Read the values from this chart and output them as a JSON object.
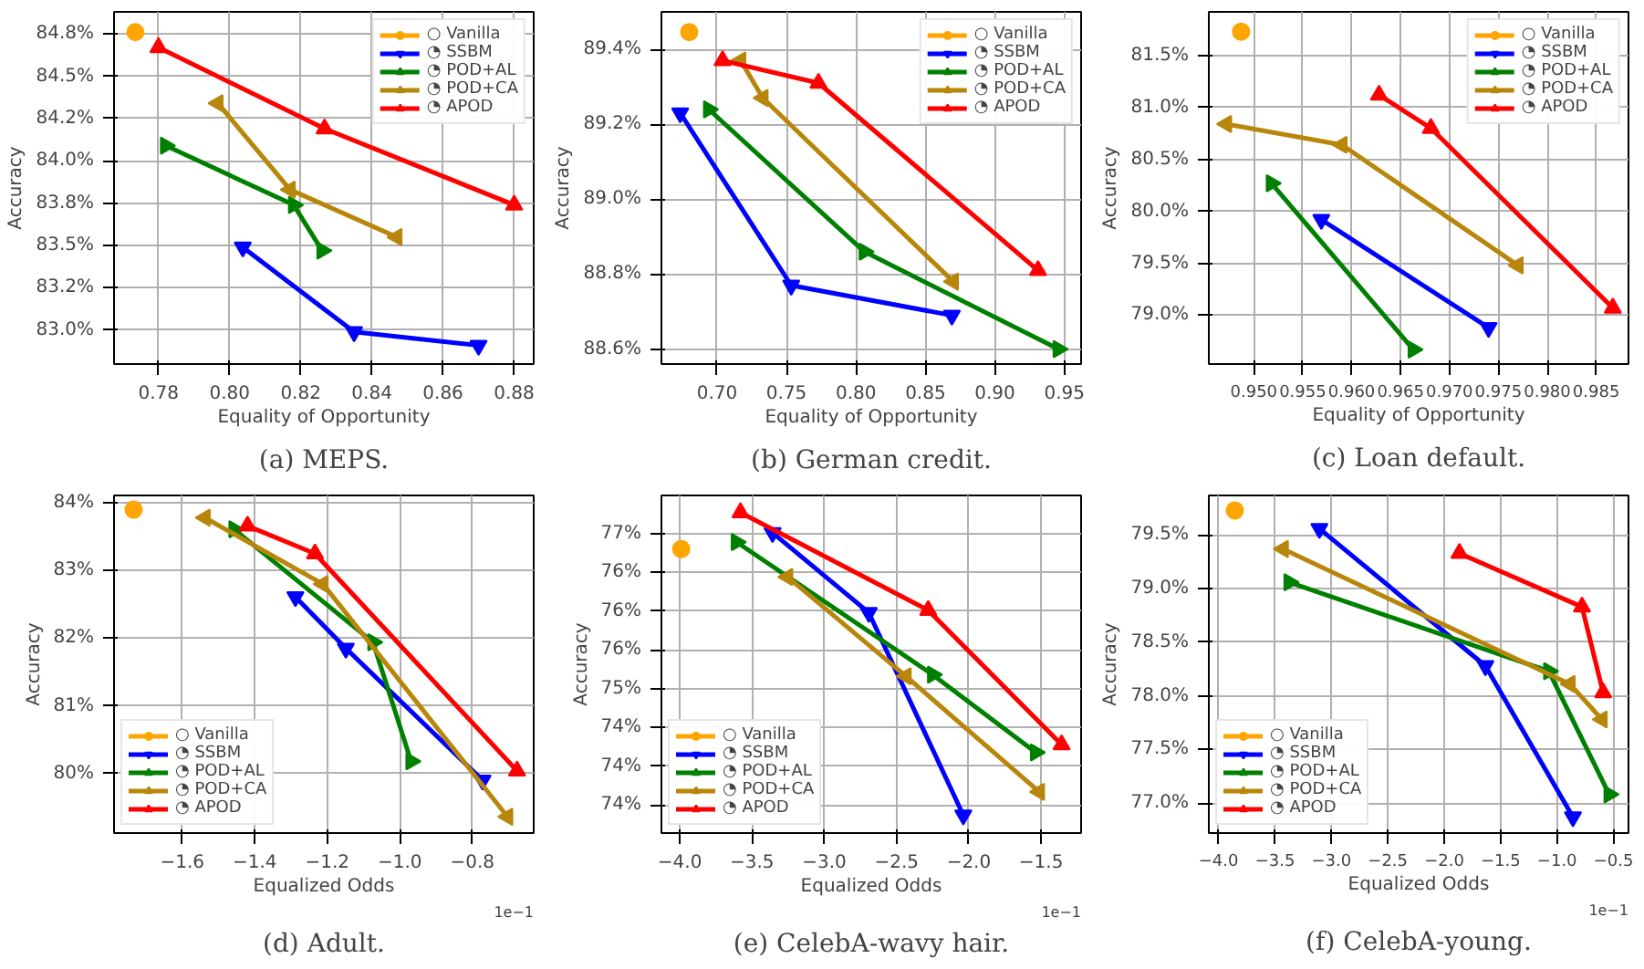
{
  "chart_data": [
    {
      "type": "line",
      "title": "(a) MEPS.",
      "xlabel": "Equality of Opportunity",
      "ylabel": "Accuracy",
      "legend": "top right",
      "grid": true,
      "xlim": [
        0.7675,
        0.8855
      ],
      "ylim": [
        82.8,
        84.88
      ],
      "xticks": [
        {
          "value": 0.78,
          "label": "0.78"
        },
        {
          "value": 0.8,
          "label": "0.80"
        },
        {
          "value": 0.82,
          "label": "0.82"
        },
        {
          "value": 0.84,
          "label": "0.84"
        },
        {
          "value": 0.86,
          "label": "0.86"
        },
        {
          "value": 0.88,
          "label": "0.88"
        }
      ],
      "yticks": [
        {
          "value": 83.0,
          "label": "83.0%"
        },
        {
          "value": 83.25,
          "label": "83.2%"
        },
        {
          "value": 83.5,
          "label": "83.5%"
        },
        {
          "value": 83.75,
          "label": "83.8%"
        },
        {
          "value": 84.0,
          "label": "84.0%"
        },
        {
          "value": 84.25,
          "label": "84.2%"
        },
        {
          "value": 84.5,
          "label": "84.5%"
        },
        {
          "value": 84.75,
          "label": "84.8%"
        }
      ],
      "series": [
        {
          "name": "○ Vanilla",
          "color": "#ffa500",
          "marker": "circle",
          "x": [
            0.7735
          ],
          "values": [
            84.76
          ]
        },
        {
          "name": "◔ SSBM",
          "color": "#0000ff",
          "marker": "triangle_down",
          "x": [
            0.8037,
            0.835,
            0.87
          ],
          "values": [
            83.49,
            82.99,
            82.91
          ]
        },
        {
          "name": "◔ POD+AL",
          "color": "#008000",
          "marker": "triangle_right",
          "x": [
            0.782,
            0.818,
            0.826
          ],
          "values": [
            84.09,
            83.74,
            83.47
          ]
        },
        {
          "name": "◔ POD+CA",
          "color": "#b8860b",
          "marker": "triangle_left",
          "x": [
            0.7967,
            0.817,
            0.847
          ],
          "values": [
            84.34,
            83.83,
            83.55
          ]
        },
        {
          "name": "◔ APOD",
          "color": "#ff0000",
          "marker": "triangle",
          "x": [
            0.78,
            0.8267,
            0.88
          ],
          "values": [
            84.67,
            84.19,
            83.74
          ]
        }
      ]
    },
    {
      "type": "line",
      "title": "(b) German credit.",
      "xlabel": "Equality of Opportunity",
      "ylabel": "Accuracy",
      "legend": "top right",
      "grid": true,
      "xlim": [
        0.66,
        0.962
      ],
      "ylim": [
        88.56,
        89.5
      ],
      "xticks": [
        {
          "value": 0.7,
          "label": "0.70"
        },
        {
          "value": 0.75,
          "label": "0.75"
        },
        {
          "value": 0.8,
          "label": "0.80"
        },
        {
          "value": 0.85,
          "label": "0.85"
        },
        {
          "value": 0.9,
          "label": "0.90"
        },
        {
          "value": 0.95,
          "label": "0.95"
        }
      ],
      "yticks": [
        {
          "value": 88.6,
          "label": "88.6%"
        },
        {
          "value": 88.8,
          "label": "88.8%"
        },
        {
          "value": 89.0,
          "label": "89.0%"
        },
        {
          "value": 89.2,
          "label": "89.2%"
        },
        {
          "value": 89.4,
          "label": "89.4%"
        }
      ],
      "series": [
        {
          "name": "○ Vanilla",
          "color": "#ffa500",
          "marker": "circle",
          "x": [
            0.68
          ],
          "values": [
            89.446
          ]
        },
        {
          "name": "◔ SSBM",
          "color": "#0000ff",
          "marker": "triangle_down",
          "x": [
            0.6735,
            0.7534,
            0.869
          ],
          "values": [
            89.23,
            88.77,
            88.69
          ]
        },
        {
          "name": "◔ POD+AL",
          "color": "#008000",
          "marker": "triangle_right",
          "x": [
            0.694,
            0.806,
            0.9456
          ],
          "values": [
            89.24,
            88.86,
            88.6
          ]
        },
        {
          "name": "◔ POD+CA",
          "color": "#b8860b",
          "marker": "triangle_left",
          "x": [
            0.717,
            0.733,
            0.87
          ],
          "values": [
            89.37,
            89.27,
            88.78
          ]
        },
        {
          "name": "◔ APOD",
          "color": "#ff0000",
          "marker": "triangle",
          "x": [
            0.704,
            0.773,
            0.931
          ],
          "values": [
            89.37,
            89.31,
            88.81
          ]
        }
      ]
    },
    {
      "type": "line",
      "title": "(c) Loan default.",
      "xlabel": "Equality of Opportunity",
      "ylabel": "Accuracy",
      "legend": "top right",
      "grid": true,
      "xlim": [
        0.9454,
        0.9883
      ],
      "ylim": [
        78.53,
        81.92
      ],
      "xticks": [
        {
          "value": 0.95,
          "label": "0.950"
        },
        {
          "value": 0.955,
          "label": "0.955"
        },
        {
          "value": 0.96,
          "label": "0.960"
        },
        {
          "value": 0.965,
          "label": "0.965"
        },
        {
          "value": 0.97,
          "label": "0.970"
        },
        {
          "value": 0.975,
          "label": "0.975"
        },
        {
          "value": 0.98,
          "label": "0.980"
        },
        {
          "value": 0.985,
          "label": "0.985"
        }
      ],
      "yticks": [
        {
          "value": 79.0,
          "label": "79.0%"
        },
        {
          "value": 79.5,
          "label": "79.5%"
        },
        {
          "value": 80.0,
          "label": "80.0%"
        },
        {
          "value": 80.5,
          "label": "80.5%"
        },
        {
          "value": 81.0,
          "label": "81.0%"
        },
        {
          "value": 81.5,
          "label": "81.5%"
        }
      ],
      "series": [
        {
          "name": "○ Vanilla",
          "color": "#ffa500",
          "marker": "circle",
          "x": [
            0.9487
          ],
          "values": [
            81.73
          ]
        },
        {
          "name": "◔ SSBM",
          "color": "#0000ff",
          "marker": "triangle_down",
          "x": [
            0.9569,
            0.974
          ],
          "values": [
            79.92,
            78.88
          ]
        },
        {
          "name": "◔ POD+AL",
          "color": "#008000",
          "marker": "triangle_right",
          "x": [
            0.9518,
            0.9663
          ],
          "values": [
            80.27,
            78.67
          ]
        },
        {
          "name": "◔ POD+CA",
          "color": "#b8860b",
          "marker": "triangle_left",
          "x": [
            0.9472,
            0.959,
            0.977
          ],
          "values": [
            80.84,
            80.64,
            79.48
          ]
        },
        {
          "name": "◔ APOD",
          "color": "#ff0000",
          "marker": "triangle",
          "x": [
            0.9628,
            0.9681,
            0.9867
          ],
          "values": [
            81.12,
            80.8,
            79.07
          ]
        }
      ]
    },
    {
      "type": "line",
      "title": "(d) Adult.",
      "xlabel": "Equalized Odds",
      "ylabel": "Accuracy",
      "legend": "bottom left",
      "grid": true,
      "annotations": [
        "1e−1"
      ],
      "xlim": [
        -1.788,
        -0.631
      ],
      "ylim": [
        79.12,
        84.11
      ],
      "xticks": [
        {
          "value": -1.6,
          "label": "−1.6"
        },
        {
          "value": -1.4,
          "label": "−1.4"
        },
        {
          "value": -1.2,
          "label": "−1.2"
        },
        {
          "value": -1.0,
          "label": "−1.0"
        },
        {
          "value": -0.8,
          "label": "−0.8"
        }
      ],
      "yticks": [
        {
          "value": 80,
          "label": "80%"
        },
        {
          "value": 81,
          "label": "81%"
        },
        {
          "value": 82,
          "label": "82%"
        },
        {
          "value": 83,
          "label": "83%"
        },
        {
          "value": 84,
          "label": "84%"
        }
      ],
      "series": [
        {
          "name": "○ Vanilla",
          "color": "#ffa500",
          "marker": "circle",
          "x": [
            -1.734
          ],
          "values": [
            83.9
          ]
        },
        {
          "name": "◔ SSBM",
          "color": "#0000ff",
          "marker": "triangle_down",
          "x": [
            -1.288,
            -1.149,
            -0.772
          ],
          "values": [
            82.61,
            81.85,
            79.9
          ]
        },
        {
          "name": "◔ POD+AL",
          "color": "#008000",
          "marker": "triangle_right",
          "x": [
            -1.457,
            -1.074,
            -0.969
          ],
          "values": [
            83.61,
            81.94,
            80.18
          ]
        },
        {
          "name": "◔ POD+CA",
          "color": "#b8860b",
          "marker": "triangle_left",
          "x": [
            -1.537,
            -1.212,
            -0.703
          ],
          "values": [
            83.78,
            82.8,
            79.36
          ]
        },
        {
          "name": "◔ APOD",
          "color": "#ff0000",
          "marker": "triangle",
          "x": [
            -1.42,
            -1.234,
            -0.677
          ],
          "values": [
            83.66,
            83.25,
            80.04
          ]
        }
      ]
    },
    {
      "type": "line",
      "title": "(e) CelebA-wavy hair.",
      "xlabel": "Equalized Odds",
      "ylabel": "Accuracy",
      "legend": "bottom left",
      "grid": true,
      "annotations": [
        "1e−1"
      ],
      "xlim": [
        -4.127,
        -1.223
      ],
      "ylim": [
        73.14,
        77.49
      ],
      "xticks": [
        {
          "value": -4.0,
          "label": "−4.0"
        },
        {
          "value": -3.5,
          "label": "−3.5"
        },
        {
          "value": -3.0,
          "label": "−3.0"
        },
        {
          "value": -2.5,
          "label": "−2.5"
        },
        {
          "value": -2.0,
          "label": "−2.0"
        },
        {
          "value": -1.5,
          "label": "−1.5"
        }
      ],
      "yticks": [
        {
          "value": 73.5,
          "label": "74%"
        },
        {
          "value": 74.0,
          "label": "74%"
        },
        {
          "value": 74.5,
          "label": "74%"
        },
        {
          "value": 75.0,
          "label": "75%"
        },
        {
          "value": 75.5,
          "label": "76%"
        },
        {
          "value": 76.0,
          "label": "76%"
        },
        {
          "value": 76.5,
          "label": "76%"
        },
        {
          "value": 77.0,
          "label": "77%"
        }
      ],
      "series": [
        {
          "name": "○ Vanilla",
          "color": "#ffa500",
          "marker": "circle",
          "x": [
            -3.99
          ],
          "values": [
            76.8
          ]
        },
        {
          "name": "◔ SSBM",
          "color": "#0000ff",
          "marker": "triangle_down",
          "x": [
            -3.358,
            -2.692,
            -2.038
          ],
          "values": [
            77.01,
            75.98,
            73.37
          ]
        },
        {
          "name": "◔ POD+AL",
          "color": "#008000",
          "marker": "triangle_right",
          "x": [
            -3.608,
            -2.25,
            -1.538
          ],
          "values": [
            76.89,
            75.18,
            74.18
          ]
        },
        {
          "name": "◔ POD+CA",
          "color": "#b8860b",
          "marker": "triangle_left",
          "x": [
            -3.254,
            -2.435,
            -1.512
          ],
          "values": [
            76.44,
            75.16,
            73.67
          ]
        },
        {
          "name": "◔ APOD",
          "color": "#ff0000",
          "marker": "triangle",
          "x": [
            -3.58,
            -2.281,
            -1.358
          ],
          "values": [
            77.27,
            76.01,
            74.28
          ]
        }
      ]
    },
    {
      "type": "line",
      "title": "(f) CelebA-young.",
      "xlabel": "Equalized Odds",
      "ylabel": "Accuracy",
      "legend": "bottom left",
      "grid": true,
      "annotations": [
        "1e−1"
      ],
      "xlim": [
        -4.086,
        -0.367
      ],
      "ylim": [
        76.72,
        79.87
      ],
      "xticks": [
        {
          "value": -4.0,
          "label": "−4.0"
        },
        {
          "value": -3.5,
          "label": "−3.5"
        },
        {
          "value": -3.0,
          "label": "−3.0"
        },
        {
          "value": -2.5,
          "label": "−2.5"
        },
        {
          "value": -2.0,
          "label": "−2.0"
        },
        {
          "value": -1.5,
          "label": "−1.5"
        },
        {
          "value": -1.0,
          "label": "−1.0"
        },
        {
          "value": -0.5,
          "label": "−0.5"
        }
      ],
      "yticks": [
        {
          "value": 77.0,
          "label": "77.0%"
        },
        {
          "value": 77.5,
          "label": "77.5%"
        },
        {
          "value": 78.0,
          "label": "78.0%"
        },
        {
          "value": 78.5,
          "label": "78.5%"
        },
        {
          "value": 79.0,
          "label": "79.0%"
        },
        {
          "value": 79.5,
          "label": "79.5%"
        }
      ],
      "series": [
        {
          "name": "○ Vanilla",
          "color": "#ffa500",
          "marker": "circle",
          "x": [
            -3.856
          ],
          "values": [
            79.73
          ]
        },
        {
          "name": "◔ SSBM",
          "color": "#0000ff",
          "marker": "triangle_down",
          "x": [
            -3.106,
            -1.635,
            -0.859
          ],
          "values": [
            79.56,
            78.28,
            76.87
          ]
        },
        {
          "name": "◔ POD+AL",
          "color": "#008000",
          "marker": "triangle_right",
          "x": [
            -3.374,
            -1.073,
            -0.538
          ],
          "values": [
            79.06,
            78.23,
            77.08
          ]
        },
        {
          "name": "◔ POD+CA",
          "color": "#b8860b",
          "marker": "triangle_left",
          "x": [
            -3.427,
            -0.886,
            -0.602
          ],
          "values": [
            79.37,
            78.11,
            77.78
          ]
        },
        {
          "name": "◔ APOD",
          "color": "#ff0000",
          "marker": "triangle",
          "x": [
            -1.865,
            -0.779,
            -0.592
          ],
          "values": [
            79.33,
            78.83,
            78.03
          ]
        }
      ]
    }
  ]
}
